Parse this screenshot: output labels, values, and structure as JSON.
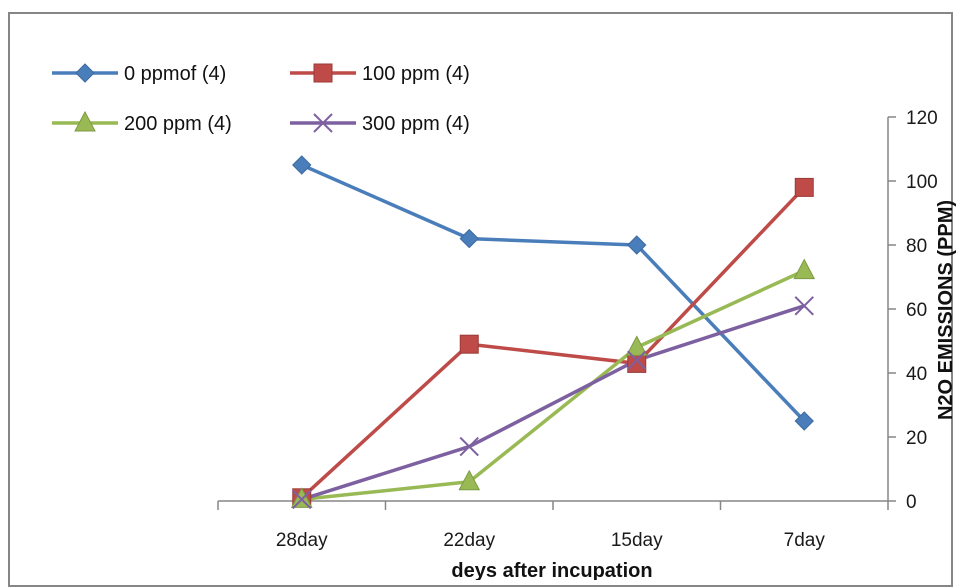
{
  "chart_data": {
    "type": "line",
    "categories": [
      "28day",
      "22day",
      "15day",
      "7day"
    ],
    "series": [
      {
        "name": "0 ppmof (4)",
        "values": [
          105,
          82,
          80,
          25
        ],
        "color": "#4a7ebb",
        "marker": "diamond"
      },
      {
        "name": "100 ppm (4)",
        "values": [
          1,
          49,
          43,
          98
        ],
        "color": "#be4b48",
        "marker": "square"
      },
      {
        "name": "200 ppm (4)",
        "values": [
          0.5,
          6,
          48,
          72
        ],
        "color": "#98b954",
        "marker": "triangle"
      },
      {
        "name": "300 ppm (4)",
        "values": [
          0.5,
          17,
          44,
          61
        ],
        "color": "#7d60a0",
        "marker": "x"
      }
    ],
    "xlabel": "deys after incupation",
    "ylabel": "N2O EMISSIONS (PPM)",
    "ylim": [
      0,
      120
    ],
    "yticks": [
      "0",
      "20",
      "40",
      "60",
      "80",
      "100",
      "120"
    ],
    "legend_position": "top-left",
    "grid": false
  }
}
